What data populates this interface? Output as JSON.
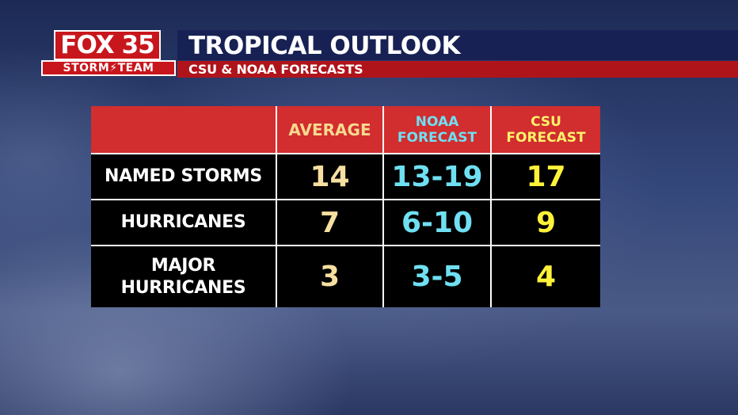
{
  "logo": {
    "brand": "FOX",
    "channel": "35",
    "team": "STORM⚡TEAM"
  },
  "header": {
    "title": "TROPICAL OUTLOOK",
    "subtitle": "CSU & NOAA FORECASTS"
  },
  "colors": {
    "header_red": "#d22d2f",
    "average": "#f6dfa0",
    "noaa": "#6fe0f2",
    "csu": "#fff23a",
    "title_bar": "#172153",
    "subtitle_bar": "#b0141b"
  },
  "chart_data": {
    "type": "table",
    "columns": [
      "",
      "AVERAGE",
      "NOAA FORECAST",
      "CSU FORECAST"
    ],
    "column_lines": {
      "noaa": [
        "NOAA",
        "FORECAST"
      ],
      "csu": [
        "CSU",
        "FORECAST"
      ]
    },
    "rows": [
      {
        "label": "NAMED STORMS",
        "average": "14",
        "noaa": "13-19",
        "csu": "17"
      },
      {
        "label": "HURRICANES",
        "average": "7",
        "noaa": "6-10",
        "csu": "9"
      },
      {
        "label_lines": [
          "MAJOR",
          "HURRICANES"
        ],
        "average": "3",
        "noaa": "3-5",
        "csu": "4"
      }
    ]
  }
}
